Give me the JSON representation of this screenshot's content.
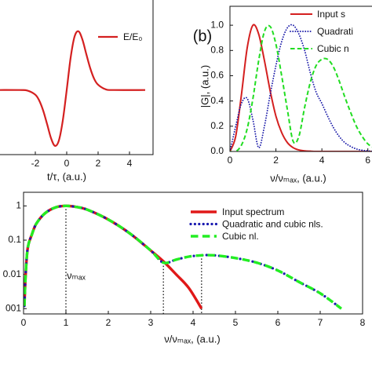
{
  "chart_data": [
    {
      "type": "line",
      "xlabel": "t/τ, (a.u.)",
      "x": [
        -5,
        -3,
        -2.5,
        -2,
        -1.75,
        -1.5,
        -1.25,
        -1,
        -0.75,
        -0.5,
        -0.25,
        0,
        0.25,
        0.5,
        0.75,
        1,
        1.25,
        1.5,
        1.75,
        2,
        2.5,
        3,
        5
      ],
      "series": [
        {
          "name": "E/E₀",
          "color": "#d42020",
          "style": "solid",
          "values": [
            0,
            0,
            -0.01,
            -0.08,
            -0.18,
            -0.35,
            -0.58,
            -0.82,
            -0.95,
            -0.86,
            -0.52,
            0,
            0.55,
            0.91,
            1.0,
            0.86,
            0.61,
            0.37,
            0.19,
            0.09,
            0.01,
            0,
            0
          ]
        }
      ],
      "xlim": [
        -5.5,
        5.5
      ],
      "ylim": [
        -1.1,
        1.6
      ],
      "xticks": [
        -2,
        0,
        2,
        4
      ]
    },
    {
      "type": "line",
      "panel_label": "(b)",
      "xlabel": "ν/νₘₐₓ, (a.u.)",
      "ylabel": "|G|, (a.u.)",
      "x": [
        0,
        0.25,
        0.5,
        0.75,
        1,
        1.25,
        1.5,
        1.75,
        2,
        2.25,
        2.5,
        2.75,
        3,
        3.25,
        3.5,
        3.75,
        4,
        4.25,
        4.5,
        4.75,
        5,
        5.25,
        5.5,
        5.75,
        6,
        6.25,
        6.5,
        6.75,
        7
      ],
      "series": [
        {
          "name": "Input s",
          "color": "#d42020",
          "style": "solid",
          "values": [
            0,
            0.12,
            0.45,
            0.82,
            1.0,
            0.93,
            0.72,
            0.48,
            0.28,
            0.15,
            0.07,
            0.03,
            0.012,
            0.005,
            0.002,
            0,
            0,
            0,
            0,
            0,
            0,
            0,
            0,
            0,
            0,
            0,
            0,
            0,
            0
          ]
        },
        {
          "name": "Quadrati",
          "color": "#1a1aa8",
          "style": "dotted",
          "values": [
            0,
            0.2,
            0.38,
            0.42,
            0.25,
            0.03,
            0.2,
            0.45,
            0.68,
            0.87,
            0.98,
            1.0,
            0.93,
            0.8,
            0.62,
            0.47,
            0.38,
            0.28,
            0.19,
            0.12,
            0.07,
            0.04,
            0.02,
            0.01,
            0.005,
            0,
            0,
            0,
            0
          ]
        },
        {
          "name": "Cubic n",
          "color": "#22dd22",
          "style": "dashed",
          "values": [
            0,
            0,
            0.05,
            0.18,
            0.42,
            0.72,
            0.95,
            0.99,
            0.85,
            0.6,
            0.33,
            0.08,
            0.12,
            0.35,
            0.55,
            0.68,
            0.73,
            0.73,
            0.67,
            0.56,
            0.43,
            0.31,
            0.2,
            0.12,
            0.06,
            0.03,
            0.01,
            0,
            0
          ]
        }
      ],
      "xlim": [
        0,
        7
      ],
      "ylim": [
        0,
        1.15
      ],
      "xticks": [
        0,
        2,
        4,
        6
      ],
      "yticks": [
        {
          "value": 0,
          "label": "0.0"
        },
        0.2,
        0.4,
        0.6,
        0.8,
        {
          "value": 1,
          "label": "1.0"
        }
      ]
    },
    {
      "type": "line",
      "log_y": true,
      "xlabel": "ν/νₘₐₓ, (a.u.)",
      "annotation": "νₘₐₓ",
      "x": [
        0.02,
        0.05,
        0.1,
        0.2,
        0.3,
        0.5,
        0.75,
        1,
        1.25,
        1.5,
        2,
        2.5,
        3,
        3.3,
        3.6,
        3.9,
        4.2,
        4.5,
        5,
        5.5,
        6,
        6.5,
        7,
        7.5
      ],
      "series": [
        {
          "name": "Input spectrum",
          "color": "#e01818",
          "style": "solid",
          "values": [
            0.0012,
            0.01,
            0.06,
            0.15,
            0.3,
            0.6,
            0.9,
            1.0,
            0.93,
            0.78,
            0.4,
            0.16,
            0.05,
            0.024,
            0.01,
            0.004,
            0.001,
            null,
            null,
            null,
            null,
            null,
            null,
            null
          ]
        },
        {
          "name": "Quadratic and cubic nls.",
          "color": "#1a1ab0",
          "style": "dotted",
          "values": [
            0.0012,
            0.01,
            0.06,
            0.15,
            0.3,
            0.6,
            0.9,
            1.0,
            0.93,
            0.78,
            0.4,
            0.16,
            0.05,
            0.022,
            0.027,
            0.033,
            0.036,
            0.036,
            0.03,
            0.022,
            0.013,
            0.006,
            0.0028,
            0.001
          ]
        },
        {
          "name": "Cubic nl.",
          "color": "#22ee22",
          "style": "dashed",
          "values": [
            0.0012,
            0.01,
            0.06,
            0.15,
            0.3,
            0.6,
            0.9,
            1.0,
            0.93,
            0.78,
            0.4,
            0.16,
            0.05,
            0.022,
            0.027,
            0.033,
            0.036,
            0.036,
            0.03,
            0.022,
            0.013,
            0.006,
            0.0028,
            0.001
          ]
        }
      ],
      "vlines": [
        {
          "x": 1,
          "y": 1.0
        },
        {
          "x": 3.3,
          "y": 0.022
        },
        {
          "x": 4.2,
          "y": 0.036
        }
      ],
      "xlim": [
        0,
        8
      ],
      "ylim": [
        0.0007,
        2.5
      ],
      "xticks": [
        0,
        1,
        2,
        3,
        4,
        5,
        6,
        7,
        8
      ],
      "yticks": [
        1,
        0.1,
        0.01,
        {
          "value": 0.001,
          "label": "001"
        }
      ]
    }
  ]
}
